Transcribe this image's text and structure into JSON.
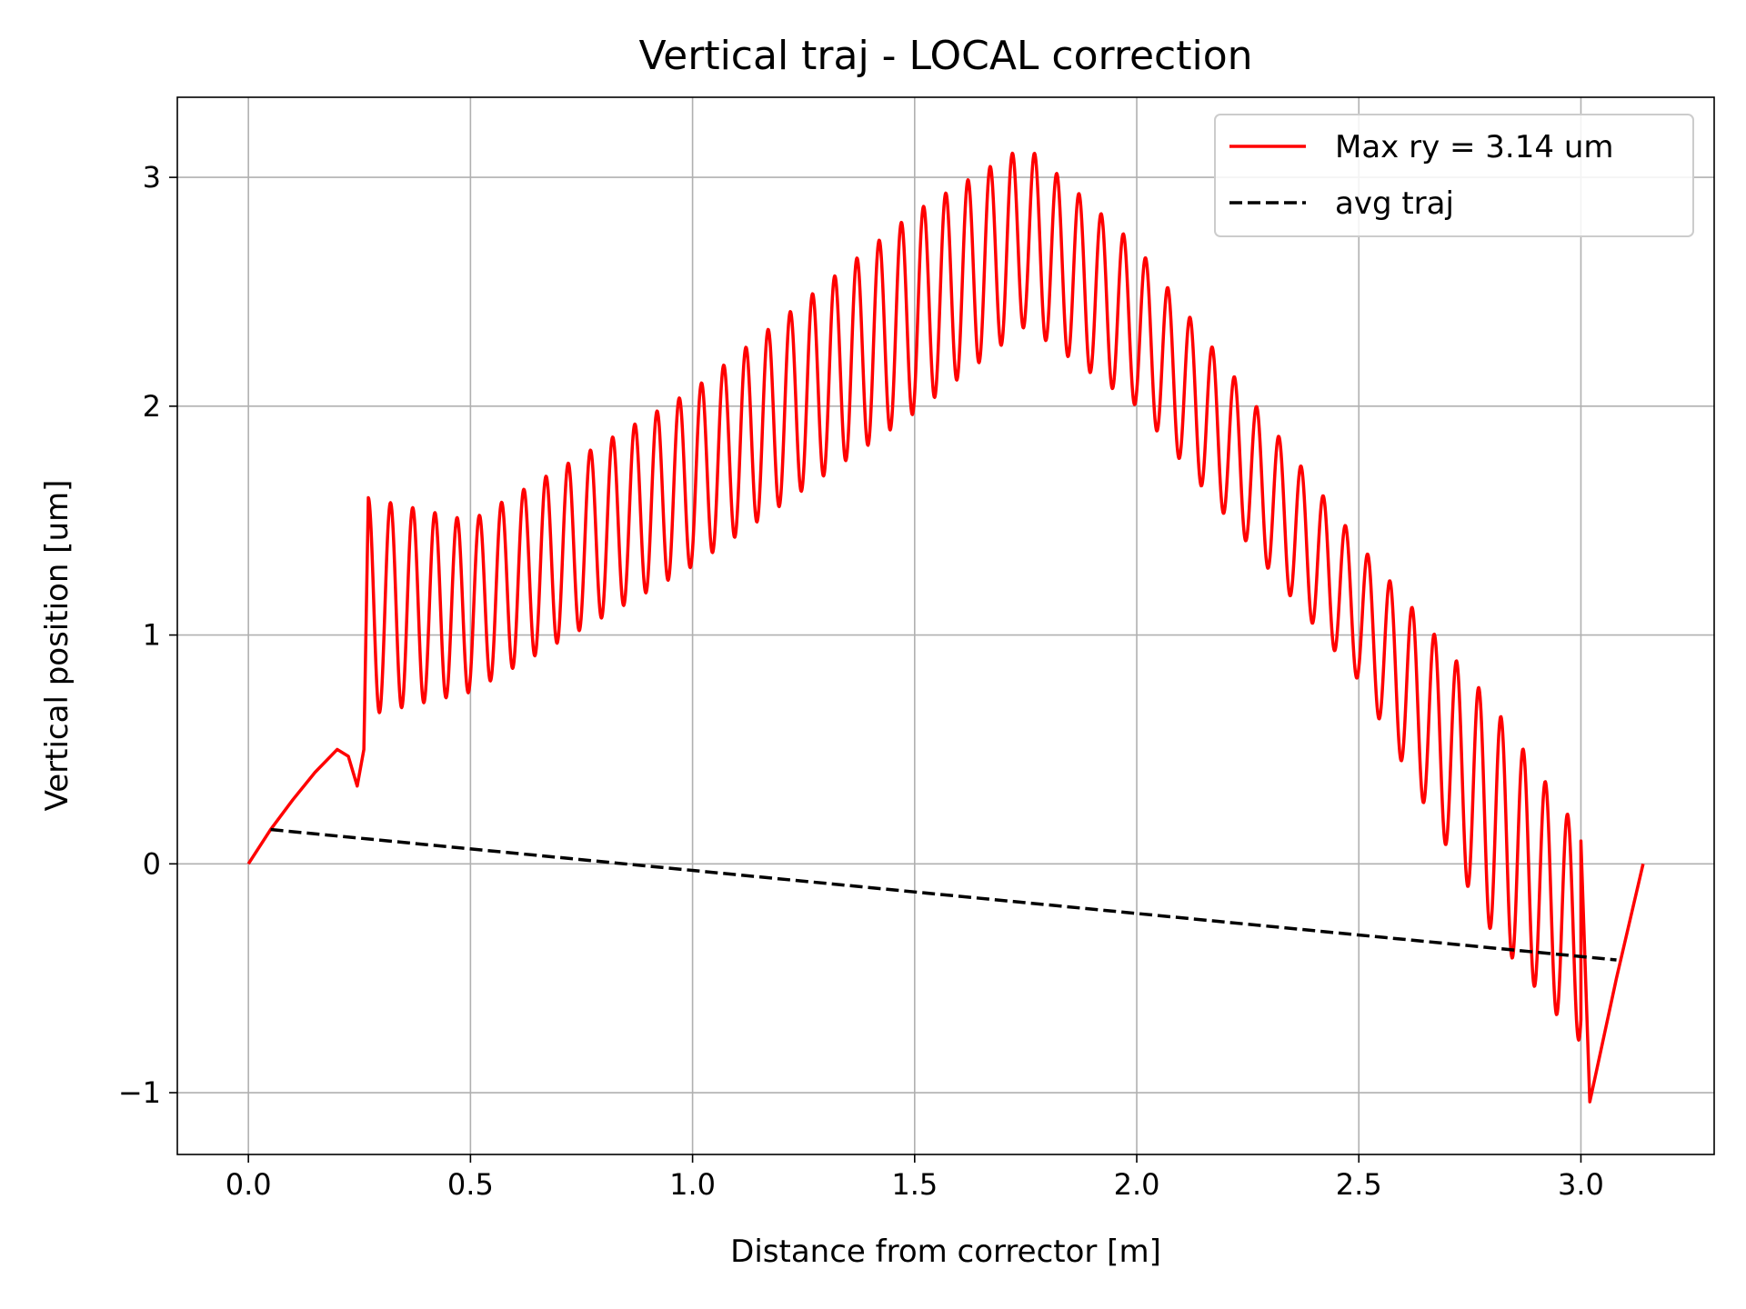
{
  "chart_data": {
    "type": "line",
    "title": "Vertical traj - LOCAL correction",
    "xlabel": "Distance from corrector [m]",
    "ylabel": "Vertical position [um]",
    "xlim": [
      -0.16,
      3.3
    ],
    "ylim": [
      -1.27,
      3.35
    ],
    "xticks": [
      0.0,
      0.5,
      1.0,
      1.5,
      2.0,
      2.5,
      3.0
    ],
    "xtick_labels": [
      "0.0",
      "0.5",
      "1.0",
      "1.5",
      "2.0",
      "2.5",
      "3.0"
    ],
    "yticks": [
      -1,
      0,
      1,
      2,
      3
    ],
    "ytick_labels": [
      "−1",
      "0",
      "1",
      "2",
      "3"
    ],
    "grid": true,
    "legend": {
      "position": "top-right"
    },
    "series": [
      {
        "name": "Max ry = 3.14 um",
        "style": "solid",
        "color": "#ff0000",
        "x_start": 0.0,
        "x_end": 3.14,
        "x_osc_start": 0.27,
        "period": 0.05,
        "anchors": [
          {
            "x": 0.27,
            "max": 1.6,
            "min": 0.65
          },
          {
            "x": 0.5,
            "max": 1.5,
            "min": 0.75
          },
          {
            "x": 1.0,
            "max": 2.07,
            "min": 1.3
          },
          {
            "x": 1.5,
            "max": 2.85,
            "min": 1.97
          },
          {
            "x": 1.75,
            "max": 3.14,
            "min": 2.35
          },
          {
            "x": 2.0,
            "max": 2.7,
            "min": 2.0
          },
          {
            "x": 2.5,
            "max": 1.4,
            "min": 0.8
          },
          {
            "x": 2.8,
            "max": 0.7,
            "min": -0.3
          },
          {
            "x": 2.99,
            "max": 0.16,
            "min": -0.77
          }
        ],
        "lead_in": [
          [
            0.0,
            0.0
          ],
          [
            0.05,
            0.15
          ],
          [
            0.1,
            0.28
          ],
          [
            0.15,
            0.4
          ],
          [
            0.2,
            0.5
          ],
          [
            0.225,
            0.47
          ],
          [
            0.245,
            0.34
          ],
          [
            0.26,
            0.5
          ]
        ],
        "tail": [
          [
            3.0,
            0.1
          ],
          [
            3.02,
            -1.04
          ],
          [
            3.08,
            -0.5
          ],
          [
            3.14,
            0.0
          ]
        ]
      },
      {
        "name": "avg traj",
        "style": "dashed",
        "color": "#000000",
        "x": [
          0.05,
          3.08
        ],
        "y": [
          0.15,
          -0.42
        ]
      }
    ]
  }
}
